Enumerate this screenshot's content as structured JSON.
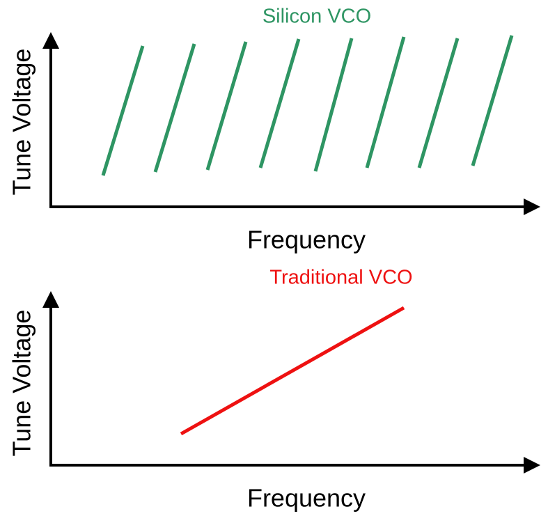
{
  "diagrams": [
    {
      "title": "Silicon VCO",
      "x_label": "Frequency",
      "y_label": "Tune Voltage"
    },
    {
      "title": "Traditional VCO",
      "x_label": "Frequency",
      "y_label": "Tune Voltage"
    }
  ]
}
